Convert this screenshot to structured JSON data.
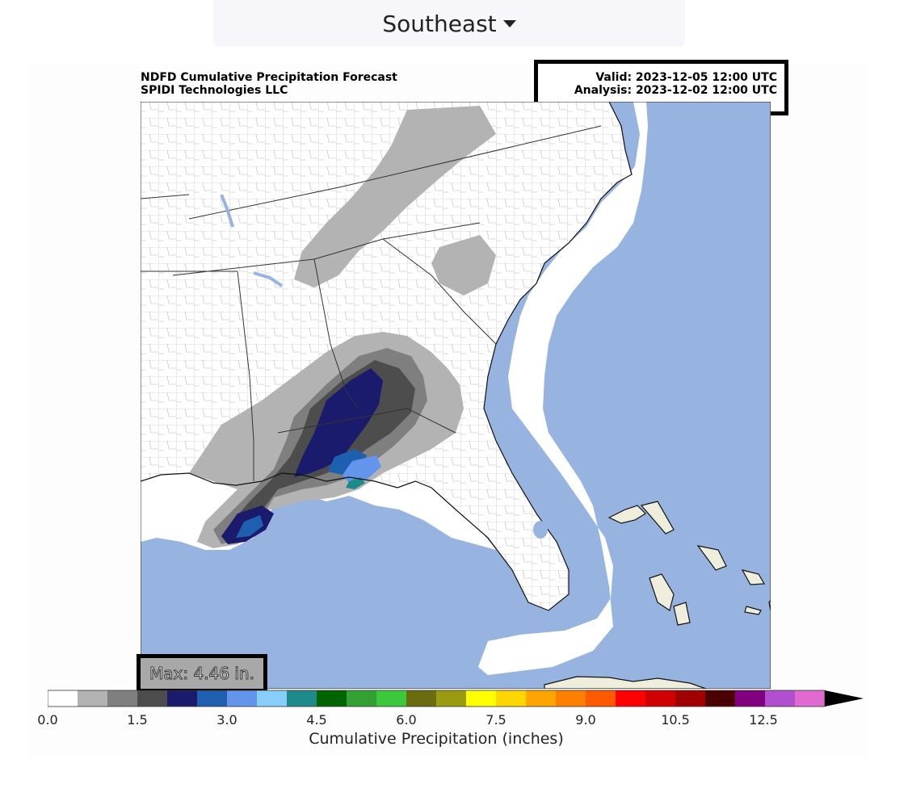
{
  "header": {
    "region_selected": "Southeast"
  },
  "figure": {
    "title_line1": "NDFD Cumulative Precipitation Forecast",
    "title_line2": "SPIDI Technologies LLC",
    "valid": "Valid: 2023-12-05 12:00 UTC",
    "analysis": "Analysis: 2023-12-02 12:00 UTC",
    "max_label": "Max: 4.46 in."
  },
  "colors": {
    "ocean": "#97b4e0",
    "land": "#ffffff",
    "foreign_land": "#efeedc",
    "coast_buffer": "#ffffff"
  },
  "colorbar": {
    "label": "Cumulative Precipitation (inches)",
    "tick_labels": [
      "0.0",
      "1.5",
      "3.0",
      "4.5",
      "6.0",
      "7.5",
      "9.0",
      "10.5",
      "12.5"
    ],
    "bins": [
      "#ffffff",
      "#b3b3b3",
      "#7f7f7f",
      "#4d4d4d",
      "#1b1b6e",
      "#1f5faf",
      "#6495ed",
      "#87cefa",
      "#1f8a8a",
      "#006400",
      "#32a032",
      "#3cc83c",
      "#6b6b10",
      "#9b9b10",
      "#ffff00",
      "#ffd700",
      "#ffa500",
      "#ff7f00",
      "#ff5a00",
      "#ff0000",
      "#d10000",
      "#a00000",
      "#4a0000",
      "#800080",
      "#b04fd0",
      "#e06ad0"
    ],
    "extend": "max"
  },
  "map_features": {
    "labels": [],
    "precip_areas": [
      "light-gray band across Tennessee, Kentucky, western North Carolina",
      "medium-dark band along Gulf coast (Louisiana to Florida panhandle)",
      "heaviest core over southeast Alabama / Florida panhandle offshore"
    ]
  }
}
